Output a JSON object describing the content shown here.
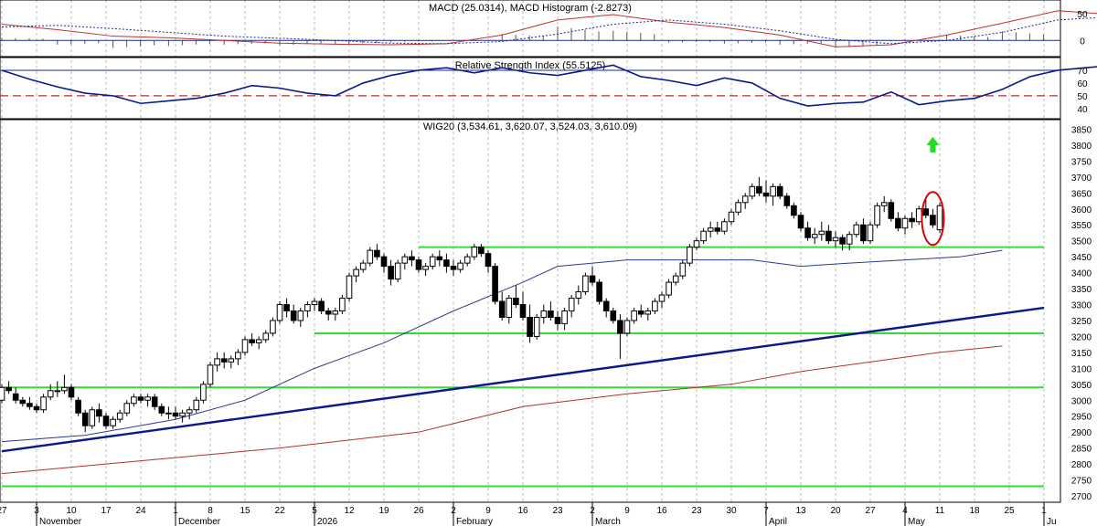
{
  "chart_data": [
    {
      "type": "line",
      "title": "MACD (25.0314), MACD Histogram (-2.8273)",
      "y_ticks": [
        50,
        0
      ],
      "ylim": [
        -30,
        75
      ],
      "x": [
        0,
        8,
        16,
        24,
        32,
        40,
        48,
        56,
        64,
        72,
        80,
        88,
        96,
        104,
        112,
        120,
        128,
        136,
        144,
        152,
        160,
        168
      ],
      "series": [
        {
          "values": [
            30,
            20,
            8,
            5,
            0,
            -5,
            -7,
            -8,
            -6,
            10,
            38,
            48,
            34,
            24,
            10,
            -12,
            -8,
            10,
            32,
            55,
            48,
            25
          ]
        },
        {
          "values": [
            25,
            28,
            22,
            15,
            8,
            4,
            0,
            -5,
            -6,
            -2,
            12,
            30,
            38,
            30,
            18,
            2,
            -6,
            0,
            15,
            38,
            44,
            28
          ]
        }
      ],
      "histogram": [
        5,
        -8,
        -14,
        -10,
        -8,
        -9,
        -7,
        -3,
        0,
        12,
        26,
        18,
        -4,
        -6,
        -8,
        -14,
        -2,
        10,
        17,
        17,
        4,
        -3
      ]
    },
    {
      "type": "line",
      "title": "Relative Strength Index (55.5125)",
      "y_ticks": [
        70,
        60,
        50,
        40
      ],
      "ylim": [
        32,
        80
      ],
      "levels": [
        70,
        50
      ],
      "x": [
        0,
        4,
        8,
        12,
        16,
        20,
        24,
        28,
        32,
        36,
        40,
        44,
        48,
        52,
        56,
        60,
        64,
        68,
        72,
        76,
        80,
        84,
        88,
        92,
        96,
        100,
        104,
        108,
        112,
        116,
        120,
        124,
        128,
        132,
        136,
        140,
        144,
        148,
        152,
        156,
        160,
        164,
        168
      ],
      "values": [
        70,
        63,
        57,
        52,
        50,
        44,
        46,
        48,
        52,
        58,
        56,
        52,
        50,
        60,
        66,
        70,
        72,
        68,
        72,
        68,
        66,
        70,
        74,
        65,
        62,
        58,
        64,
        60,
        48,
        42,
        44,
        45,
        53,
        43,
        46,
        48,
        55,
        65,
        70,
        72,
        74,
        68,
        60
      ]
    },
    {
      "type": "candlestick",
      "title": "WIG20 (3,534.61, 3,620.07, 3,524.03, 3,610.09)",
      "y_ticks": [
        3850,
        3800,
        3750,
        3700,
        3650,
        3600,
        3550,
        3500,
        3450,
        3400,
        3350,
        3300,
        3250,
        3200,
        3150,
        3100,
        3050,
        3000,
        2950,
        2900,
        2850,
        2800,
        2750,
        2700
      ],
      "ylim": [
        2680,
        3880
      ],
      "x_ticks": [
        {
          "x": 0,
          "label": "27"
        },
        {
          "x": 5,
          "label": "3"
        },
        {
          "x": 10,
          "label": "10"
        },
        {
          "x": 15,
          "label": "17"
        },
        {
          "x": 20,
          "label": "24"
        },
        {
          "x": 25,
          "label": "1"
        },
        {
          "x": 30,
          "label": "8"
        },
        {
          "x": 35,
          "label": "15"
        },
        {
          "x": 40,
          "label": "22"
        },
        {
          "x": 45,
          "label": "5"
        },
        {
          "x": 50,
          "label": "12"
        },
        {
          "x": 55,
          "label": "19"
        },
        {
          "x": 60,
          "label": "26"
        },
        {
          "x": 65,
          "label": "2"
        },
        {
          "x": 70,
          "label": "9"
        },
        {
          "x": 75,
          "label": "16"
        },
        {
          "x": 80,
          "label": "23"
        },
        {
          "x": 85,
          "label": "2"
        },
        {
          "x": 90,
          "label": "9"
        },
        {
          "x": 95,
          "label": "16"
        },
        {
          "x": 100,
          "label": "23"
        },
        {
          "x": 105,
          "label": "30"
        },
        {
          "x": 110,
          "label": "7"
        },
        {
          "x": 115,
          "label": "13"
        },
        {
          "x": 120,
          "label": "20"
        },
        {
          "x": 125,
          "label": "27"
        },
        {
          "x": 130,
          "label": "4"
        },
        {
          "x": 135,
          "label": "11"
        },
        {
          "x": 140,
          "label": "18"
        },
        {
          "x": 145,
          "label": "25"
        },
        {
          "x": 150,
          "label": "1"
        }
      ],
      "month_labels": [
        {
          "x": 5,
          "label": "November"
        },
        {
          "x": 25,
          "label": "December"
        },
        {
          "x": 45,
          "label": "2026"
        },
        {
          "x": 65,
          "label": "February"
        },
        {
          "x": 85,
          "label": "March"
        },
        {
          "x": 110,
          "label": "April"
        },
        {
          "x": 130,
          "label": "May"
        },
        {
          "x": 150,
          "label": "Ju"
        }
      ],
      "candles": [
        [
          3000,
          3050,
          2990,
          3040
        ],
        [
          3040,
          3060,
          3020,
          3030
        ],
        [
          3020,
          3040,
          2990,
          3000
        ],
        [
          3000,
          3010,
          2980,
          2990
        ],
        [
          2990,
          3010,
          2970,
          2980
        ],
        [
          2980,
          2990,
          2960,
          2970
        ],
        [
          2970,
          3020,
          2960,
          3010
        ],
        [
          3010,
          3050,
          3000,
          3030
        ],
        [
          3030,
          3060,
          3010,
          3030
        ],
        [
          3030,
          3080,
          3020,
          3040
        ],
        [
          3040,
          3050,
          3000,
          3010
        ],
        [
          3000,
          3010,
          2950,
          2960
        ],
        [
          2960,
          2970,
          2900,
          2920
        ],
        [
          2920,
          2980,
          2910,
          2970
        ],
        [
          2970,
          2990,
          2930,
          2950
        ],
        [
          2950,
          2960,
          2910,
          2920
        ],
        [
          2920,
          2950,
          2910,
          2940
        ],
        [
          2940,
          2970,
          2930,
          2960
        ],
        [
          2960,
          3000,
          2950,
          2990
        ],
        [
          2990,
          3020,
          2980,
          3010
        ],
        [
          3010,
          3020,
          2990,
          3000
        ],
        [
          3000,
          3020,
          2980,
          3010
        ],
        [
          3010,
          3020,
          2970,
          2980
        ],
        [
          2980,
          2990,
          2950,
          2960
        ],
        [
          2960,
          2980,
          2940,
          2960
        ],
        [
          2960,
          2980,
          2940,
          2950
        ],
        [
          2950,
          2970,
          2930,
          2960
        ],
        [
          2960,
          2980,
          2940,
          2970
        ],
        [
          2970,
          3010,
          2960,
          3000
        ],
        [
          3000,
          3060,
          2990,
          3050
        ],
        [
          3050,
          3120,
          3040,
          3110
        ],
        [
          3110,
          3150,
          3090,
          3130
        ],
        [
          3130,
          3150,
          3100,
          3120
        ],
        [
          3120,
          3140,
          3100,
          3130
        ],
        [
          3130,
          3160,
          3110,
          3150
        ],
        [
          3150,
          3200,
          3140,
          3190
        ],
        [
          3190,
          3210,
          3170,
          3180
        ],
        [
          3180,
          3200,
          3160,
          3190
        ],
        [
          3190,
          3220,
          3180,
          3210
        ],
        [
          3210,
          3260,
          3200,
          3250
        ],
        [
          3250,
          3310,
          3240,
          3300
        ],
        [
          3300,
          3320,
          3260,
          3280
        ],
        [
          3280,
          3300,
          3240,
          3250
        ],
        [
          3250,
          3290,
          3230,
          3280
        ],
        [
          3280,
          3310,
          3260,
          3300
        ],
        [
          3300,
          3320,
          3280,
          3310
        ],
        [
          3310,
          3320,
          3270,
          3280
        ],
        [
          3280,
          3290,
          3250,
          3270
        ],
        [
          3270,
          3290,
          3250,
          3280
        ],
        [
          3280,
          3330,
          3270,
          3320
        ],
        [
          3320,
          3400,
          3310,
          3390
        ],
        [
          3390,
          3420,
          3370,
          3410
        ],
        [
          3410,
          3440,
          3400,
          3430
        ],
        [
          3430,
          3480,
          3420,
          3470
        ],
        [
          3470,
          3490,
          3440,
          3450
        ],
        [
          3450,
          3460,
          3400,
          3420
        ],
        [
          3420,
          3440,
          3360,
          3380
        ],
        [
          3380,
          3440,
          3370,
          3430
        ],
        [
          3430,
          3460,
          3410,
          3450
        ],
        [
          3450,
          3470,
          3420,
          3440
        ],
        [
          3440,
          3450,
          3400,
          3410
        ],
        [
          3410,
          3430,
          3390,
          3420
        ],
        [
          3420,
          3460,
          3410,
          3450
        ],
        [
          3450,
          3470,
          3420,
          3440
        ],
        [
          3440,
          3460,
          3400,
          3420
        ],
        [
          3420,
          3440,
          3390,
          3410
        ],
        [
          3410,
          3440,
          3400,
          3430
        ],
        [
          3430,
          3460,
          3420,
          3450
        ],
        [
          3450,
          3490,
          3440,
          3480
        ],
        [
          3480,
          3490,
          3450,
          3460
        ],
        [
          3460,
          3470,
          3400,
          3420
        ],
        [
          3420,
          3430,
          3300,
          3310
        ],
        [
          3310,
          3340,
          3250,
          3260
        ],
        [
          3260,
          3330,
          3240,
          3320
        ],
        [
          3320,
          3360,
          3290,
          3300
        ],
        [
          3300,
          3340,
          3250,
          3260
        ],
        [
          3260,
          3300,
          3180,
          3200
        ],
        [
          3200,
          3270,
          3190,
          3260
        ],
        [
          3260,
          3300,
          3240,
          3280
        ],
        [
          3280,
          3310,
          3250,
          3260
        ],
        [
          3260,
          3280,
          3220,
          3240
        ],
        [
          3240,
          3290,
          3220,
          3280
        ],
        [
          3280,
          3330,
          3260,
          3320
        ],
        [
          3320,
          3360,
          3300,
          3340
        ],
        [
          3340,
          3400,
          3330,
          3390
        ],
        [
          3390,
          3420,
          3360,
          3370
        ],
        [
          3370,
          3380,
          3300,
          3310
        ],
        [
          3310,
          3320,
          3260,
          3280
        ],
        [
          3280,
          3290,
          3240,
          3250
        ],
        [
          3250,
          3270,
          3130,
          3210
        ],
        [
          3210,
          3260,
          3200,
          3250
        ],
        [
          3250,
          3290,
          3240,
          3280
        ],
        [
          3280,
          3300,
          3260,
          3270
        ],
        [
          3270,
          3290,
          3250,
          3280
        ],
        [
          3280,
          3320,
          3270,
          3310
        ],
        [
          3310,
          3340,
          3290,
          3330
        ],
        [
          3330,
          3380,
          3320,
          3370
        ],
        [
          3370,
          3400,
          3360,
          3390
        ],
        [
          3390,
          3440,
          3380,
          3430
        ],
        [
          3430,
          3490,
          3420,
          3480
        ],
        [
          3480,
          3510,
          3470,
          3500
        ],
        [
          3500,
          3540,
          3490,
          3530
        ],
        [
          3530,
          3560,
          3510,
          3540
        ],
        [
          3540,
          3560,
          3520,
          3530
        ],
        [
          3530,
          3570,
          3520,
          3560
        ],
        [
          3560,
          3600,
          3550,
          3590
        ],
        [
          3590,
          3630,
          3580,
          3620
        ],
        [
          3620,
          3650,
          3600,
          3640
        ],
        [
          3640,
          3680,
          3630,
          3670
        ],
        [
          3670,
          3700,
          3640,
          3650
        ],
        [
          3650,
          3690,
          3620,
          3640
        ],
        [
          3640,
          3680,
          3610,
          3670
        ],
        [
          3670,
          3680,
          3630,
          3640
        ],
        [
          3640,
          3650,
          3600,
          3610
        ],
        [
          3610,
          3620,
          3570,
          3580
        ],
        [
          3580,
          3590,
          3530,
          3540
        ],
        [
          3540,
          3560,
          3500,
          3510
        ],
        [
          3510,
          3540,
          3490,
          3520
        ],
        [
          3520,
          3560,
          3500,
          3530
        ],
        [
          3530,
          3550,
          3490,
          3500
        ],
        [
          3500,
          3530,
          3480,
          3510
        ],
        [
          3510,
          3520,
          3470,
          3490
        ],
        [
          3490,
          3530,
          3470,
          3520
        ],
        [
          3520,
          3560,
          3510,
          3550
        ],
        [
          3550,
          3570,
          3490,
          3500
        ],
        [
          3500,
          3560,
          3490,
          3550
        ],
        [
          3550,
          3620,
          3540,
          3610
        ],
        [
          3610,
          3640,
          3590,
          3620
        ],
        [
          3620,
          3630,
          3560,
          3570
        ],
        [
          3570,
          3590,
          3530,
          3540
        ],
        [
          3540,
          3580,
          3520,
          3570
        ],
        [
          3570,
          3590,
          3540,
          3560
        ],
        [
          3560,
          3610,
          3550,
          3600
        ],
        [
          3600,
          3630,
          3570,
          3580
        ],
        [
          3580,
          3600,
          3540,
          3550
        ],
        [
          3534.61,
          3620.07,
          3524.03,
          3610.09
        ]
      ],
      "sma_short": [
        [
          0,
          2870
        ],
        [
          12,
          2890
        ],
        [
          25,
          2940
        ],
        [
          35,
          3000
        ],
        [
          45,
          3100
        ],
        [
          55,
          3180
        ],
        [
          65,
          3280
        ],
        [
          75,
          3370
        ],
        [
          80,
          3420
        ],
        [
          90,
          3440
        ],
        [
          100,
          3440
        ],
        [
          108,
          3440
        ],
        [
          115,
          3420
        ],
        [
          122,
          3430
        ],
        [
          130,
          3440
        ],
        [
          138,
          3450
        ],
        [
          144,
          3470
        ]
      ],
      "sma_long": [
        [
          0,
          2770
        ],
        [
          20,
          2810
        ],
        [
          40,
          2850
        ],
        [
          60,
          2900
        ],
        [
          75,
          2980
        ],
        [
          90,
          3020
        ],
        [
          105,
          3050
        ],
        [
          115,
          3090
        ],
        [
          125,
          3120
        ],
        [
          135,
          3150
        ],
        [
          144,
          3170
        ]
      ],
      "trendline": [
        [
          0,
          2840
        ],
        [
          150,
          3290
        ]
      ],
      "support_levels": [
        {
          "value": 3480,
          "from": 60,
          "to": 150
        },
        {
          "value": 3210,
          "from": 45,
          "to": 150
        },
        {
          "value": 3040,
          "from": 0,
          "to": 150
        },
        {
          "value": 2730,
          "from": 0,
          "to": 150
        }
      ],
      "colors": {
        "up": "#ffffff",
        "down": "#000000",
        "sma_short": "#2b3a8f",
        "sma_long": "#b03030",
        "trendline": "#0a1a8a",
        "support": "#33dd33",
        "highlight": "#e00000",
        "arrow": "#22dd22"
      }
    }
  ]
}
